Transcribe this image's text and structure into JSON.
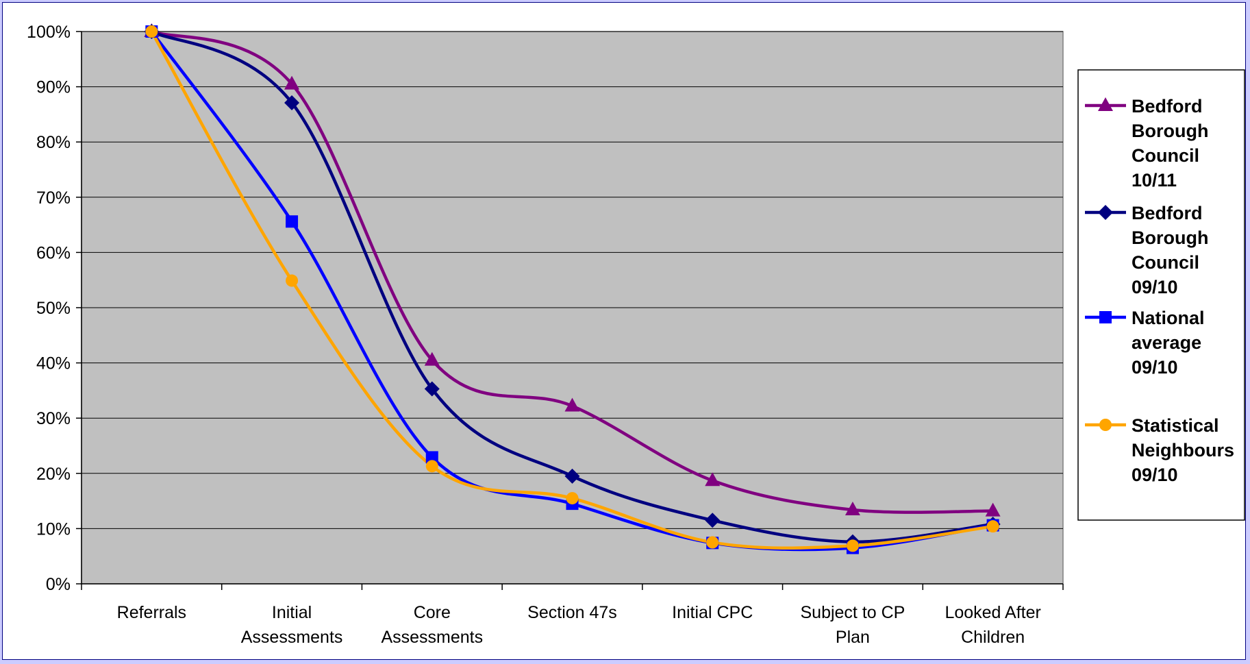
{
  "chart_data": {
    "type": "line",
    "title": "",
    "xlabel": "",
    "ylabel": "",
    "categories": [
      [
        "Referrals"
      ],
      [
        "Initial",
        "Assessments"
      ],
      [
        "Core",
        "Assessments"
      ],
      [
        "Section 47s"
      ],
      [
        "Initial CPC"
      ],
      [
        "Subject to CP",
        "Plan"
      ],
      [
        "Looked After",
        "Children"
      ]
    ],
    "y_ticks": [
      "0%",
      "10%",
      "20%",
      "30%",
      "40%",
      "50%",
      "60%",
      "70%",
      "80%",
      "90%",
      "100%"
    ],
    "ylim": [
      0,
      100
    ],
    "y_unit": "%",
    "grid": "horizontal",
    "plot_background": "#c0c0c0",
    "legend_position": "right",
    "series": [
      {
        "name": [
          "Bedford",
          "Borough",
          "Council",
          "10/11"
        ],
        "color": "#800080",
        "marker": "triangle",
        "values": [
          100,
          90.5,
          40.5,
          32.2,
          18.7,
          13.4,
          13.2
        ]
      },
      {
        "name": [
          "Bedford",
          "Borough",
          "Council",
          "09/10"
        ],
        "color": "#000080",
        "marker": "diamond",
        "values": [
          100,
          87.1,
          35.3,
          19.5,
          11.5,
          7.6,
          10.8
        ]
      },
      {
        "name": [
          "National",
          "average",
          "09/10"
        ],
        "color": "#0000ff",
        "marker": "square",
        "values": [
          100,
          65.6,
          22.9,
          14.5,
          7.4,
          6.5,
          10.6
        ]
      },
      {
        "name": [
          "Statistical",
          "Neighbours",
          "09/10"
        ],
        "color": "#ffa500",
        "marker": "circle",
        "values": [
          100,
          54.9,
          21.3,
          15.5,
          7.5,
          6.9,
          10.4
        ]
      }
    ]
  }
}
